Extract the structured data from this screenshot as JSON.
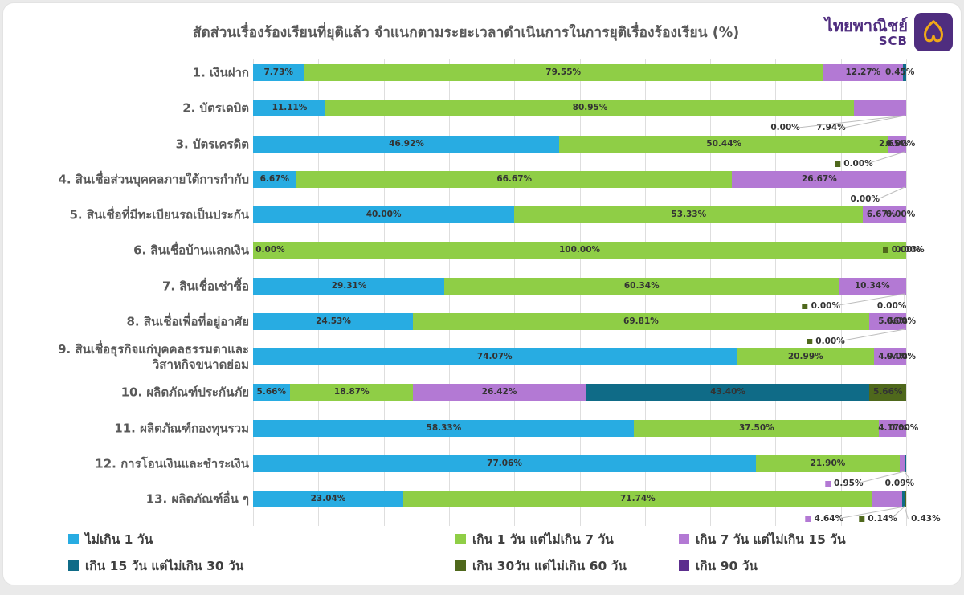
{
  "title": "สัดส่วนเรื่องร้องเรียนที่ยุติแล้ว จำแนกตามระยะเวลาดำเนินการในการยุติเรื่องร้องเรียน (%)",
  "logo": {
    "name_th": "ไทยพาณิชย์",
    "abbr": "SCB",
    "purple": "#4F2D7F",
    "gold": "#F0A818"
  },
  "chart_data": {
    "type": "bar",
    "orientation": "horizontal",
    "stacked": true,
    "xlim": [
      0,
      100
    ],
    "grid": true,
    "legend_position": "bottom",
    "title": "สัดส่วนเรื่องร้องเรียนที่ยุติแล้ว จำแนกตามระยะเวลาดำเนินการในการยุติเรื่องร้องเรียน (%)",
    "categories": [
      "1. เงินฝาก",
      "2. บัตรเดบิต",
      "3. บัตรเครดิต",
      "4. สินเชื่อส่วนบุคคลภายใต้การกำกับ",
      "5. สินเชื่อที่มีทะเบียนรถเป็นประกัน",
      "6. สินเชื่อบ้านแลกเงิน",
      "7. สินเชื่อเช่าซื้อ",
      "8. สินเชื่อเพื่อที่อยู่อาศัย",
      "9. สินเชื่อธุรกิจแก่บุคคลธรรมดาและ วิสาหกิจขนาดย่อม",
      "10. ผลิตภัณฑ์ประกันภัย",
      "11. ผลิตภัณฑ์กองทุนรวม",
      "12. การโอนเงินและชำระเงิน",
      "13. ผลิตภัณฑ์อื่น ๆ"
    ],
    "series": [
      {
        "name": "ไม่เกิน 1 วัน",
        "color": "#28ACE2",
        "values": [
          7.73,
          11.11,
          46.92,
          6.67,
          40.0,
          0,
          29.31,
          24.53,
          74.07,
          5.66,
          58.33,
          77.06,
          23.04
        ]
      },
      {
        "name": "เกิน 1 วัน แต่ไม่เกิน 7 วัน",
        "color": "#8FCE46",
        "values": [
          79.55,
          80.95,
          50.44,
          66.67,
          53.33,
          100.0,
          60.34,
          69.81,
          20.99,
          18.87,
          37.5,
          21.9,
          71.74
        ]
      },
      {
        "name": "เกิน 7 วัน แต่ไม่เกิน 15 วัน",
        "color": "#B379D4",
        "values": [
          12.27,
          7.94,
          2.65,
          26.67,
          6.67,
          0,
          10.34,
          5.66,
          4.94,
          26.42,
          4.17,
          0.95,
          4.64
        ]
      },
      {
        "name": "เกิน 15 วัน แต่ไม่เกิน 30 วัน",
        "color": "#0F6B87",
        "values": [
          0.45,
          0,
          0,
          0,
          0,
          0,
          0,
          0,
          0,
          43.4,
          0,
          0.09,
          0.43
        ]
      },
      {
        "name": "เกิน 30วัน แต่ไม่เกิน 60 วัน",
        "color": "#4F681C",
        "values": [
          0,
          0,
          0,
          0,
          0,
          0,
          0,
          0,
          0,
          5.66,
          0,
          0,
          0.14
        ]
      },
      {
        "name": "เกิน 90 วัน",
        "color": "#5C2E8E",
        "values": [
          0,
          0,
          0,
          0,
          0,
          0,
          0,
          0,
          0,
          0,
          0,
          0,
          0
        ]
      }
    ],
    "rows": [
      {
        "label": "1. เงินฝาก",
        "labels": [
          {
            "t": "7.73%",
            "x": 3.9,
            "a": "c"
          },
          {
            "t": "79.55%",
            "x": 47.5,
            "a": "c"
          },
          {
            "t": "12.27%",
            "x": 93.4,
            "a": "c"
          },
          {
            "t": "0.45%",
            "x": 96.8,
            "a": "l"
          }
        ],
        "callouts": []
      },
      {
        "label": "2. บัตรเดบิต",
        "labels": [
          {
            "t": "11.11%",
            "x": 5.6,
            "a": "c"
          },
          {
            "t": "80.95%",
            "x": 51.6,
            "a": "c"
          }
        ],
        "callouts": [
          {
            "t": "0.00%",
            "x": 81.5
          },
          {
            "t": "7.94%",
            "x": 88.5
          }
        ]
      },
      {
        "label": "3. บัตรเครดิต",
        "labels": [
          {
            "t": "46.92%",
            "x": 23.5,
            "a": "c"
          },
          {
            "t": "50.44%",
            "x": 72.1,
            "a": "c"
          },
          {
            "t": "2.65%",
            "x": 100.3,
            "a": "r"
          },
          {
            "t": "0.00%",
            "x": 96.9,
            "a": "l"
          }
        ],
        "callouts": [
          {
            "t": "0.00%",
            "x": 92,
            "m": 4
          }
        ]
      },
      {
        "label": "4. สินเชื่อส่วนบุคคลภายใต้การกำกับ",
        "labels": [
          {
            "t": "6.67%",
            "x": 3.3,
            "a": "c"
          },
          {
            "t": "66.67%",
            "x": 40,
            "a": "c"
          },
          {
            "t": "26.67%",
            "x": 86.7,
            "a": "c"
          }
        ],
        "callouts": [
          {
            "t": "0.00%",
            "x": 93.7
          }
        ]
      },
      {
        "label": "5. สินเชื่อที่มีทะเบียนรถเป็นประกัน",
        "labels": [
          {
            "t": "40.00%",
            "x": 20,
            "a": "c"
          },
          {
            "t": "53.33%",
            "x": 66.7,
            "a": "c"
          },
          {
            "t": "6.67%",
            "x": 96.2,
            "a": "c"
          },
          {
            "t": "0.00%",
            "x": 96.9,
            "a": "l"
          }
        ],
        "callouts": []
      },
      {
        "label": "6. สินเชื่อบ้านแลกเงิน",
        "labels": [
          {
            "t": "0.00%",
            "x": 0.4,
            "a": "l"
          },
          {
            "t": "100.00%",
            "x": 50,
            "a": "c"
          },
          {
            "t": "0.00%",
            "x": 96.4,
            "a": "l",
            "m": 4
          },
          {
            "t": "0.00%",
            "x": 98.3,
            "a": "l"
          }
        ],
        "callouts": []
      },
      {
        "label": "7. สินเชื่อเช่าซื้อ",
        "labels": [
          {
            "t": "29.31%",
            "x": 14.7,
            "a": "c"
          },
          {
            "t": "60.34%",
            "x": 59.5,
            "a": "c"
          },
          {
            "t": "10.34%",
            "x": 94.8,
            "a": "c"
          }
        ],
        "callouts": [
          {
            "t": "0.00%",
            "x": 87,
            "m": 4
          },
          {
            "t": "0.00%",
            "x": 97.8
          }
        ]
      },
      {
        "label": "8. สินเชื่อเพื่อที่อยู่อาศัย",
        "labels": [
          {
            "t": "24.53%",
            "x": 12.3,
            "a": "c"
          },
          {
            "t": "69.81%",
            "x": 59.4,
            "a": "c"
          },
          {
            "t": "5.66%",
            "x": 100.2,
            "a": "r"
          },
          {
            "t": "0.00%",
            "x": 97,
            "a": "l"
          }
        ],
        "callouts": [
          {
            "t": "0.00%",
            "x": 87.7,
            "m": 4
          }
        ]
      },
      {
        "label": "9. สินเชื่อธุรกิจแก่บุคคลธรรมดาและ",
        "label2": "วิสาหกิจขนาดย่อม",
        "labels": [
          {
            "t": "74.07%",
            "x": 37,
            "a": "c"
          },
          {
            "t": "20.99%",
            "x": 84.6,
            "a": "c"
          },
          {
            "t": "4.94%",
            "x": 100.2,
            "a": "r"
          },
          {
            "t": "0.00%",
            "x": 97,
            "a": "l"
          }
        ],
        "callouts": []
      },
      {
        "label": "10. ผลิตภัณฑ์ประกันภัย",
        "labels": [
          {
            "t": "5.66%",
            "x": 2.8,
            "a": "c"
          },
          {
            "t": "18.87%",
            "x": 15.1,
            "a": "c"
          },
          {
            "t": "26.42%",
            "x": 37.7,
            "a": "c"
          },
          {
            "t": "43.40%",
            "x": 72.7,
            "a": "c"
          },
          {
            "t": "5.66%",
            "x": 97.2,
            "a": "c"
          }
        ],
        "callouts": []
      },
      {
        "label": "11. ผลิตภัณฑ์กองทุนรวม",
        "labels": [
          {
            "t": "58.33%",
            "x": 29.2,
            "a": "c"
          },
          {
            "t": "37.50%",
            "x": 77.1,
            "a": "c"
          },
          {
            "t": "4.17%",
            "x": 100.2,
            "a": "r"
          },
          {
            "t": "0.00%",
            "x": 97.4,
            "a": "l"
          }
        ],
        "callouts": []
      },
      {
        "label": "12. การโอนเงินและชำระเงิน",
        "labels": [
          {
            "t": "77.06%",
            "x": 38.5,
            "a": "c"
          },
          {
            "t": "21.90%",
            "x": 88,
            "a": "c"
          }
        ],
        "callouts": [
          {
            "t": "0.95%",
            "x": 90.5,
            "m": 2
          },
          {
            "t": "0.09%",
            "x": 99
          }
        ]
      },
      {
        "label": "13. ผลิตภัณฑ์อื่น ๆ",
        "labels": [
          {
            "t": "23.04%",
            "x": 11.5,
            "a": "c"
          },
          {
            "t": "71.74%",
            "x": 58.9,
            "a": "c"
          }
        ],
        "callouts": [
          {
            "t": "4.64%",
            "x": 87.5,
            "m": 2
          },
          {
            "t": "0.14%",
            "x": 95.7,
            "m": 4
          },
          {
            "t": "0.43%",
            "x": 103
          }
        ]
      }
    ]
  }
}
